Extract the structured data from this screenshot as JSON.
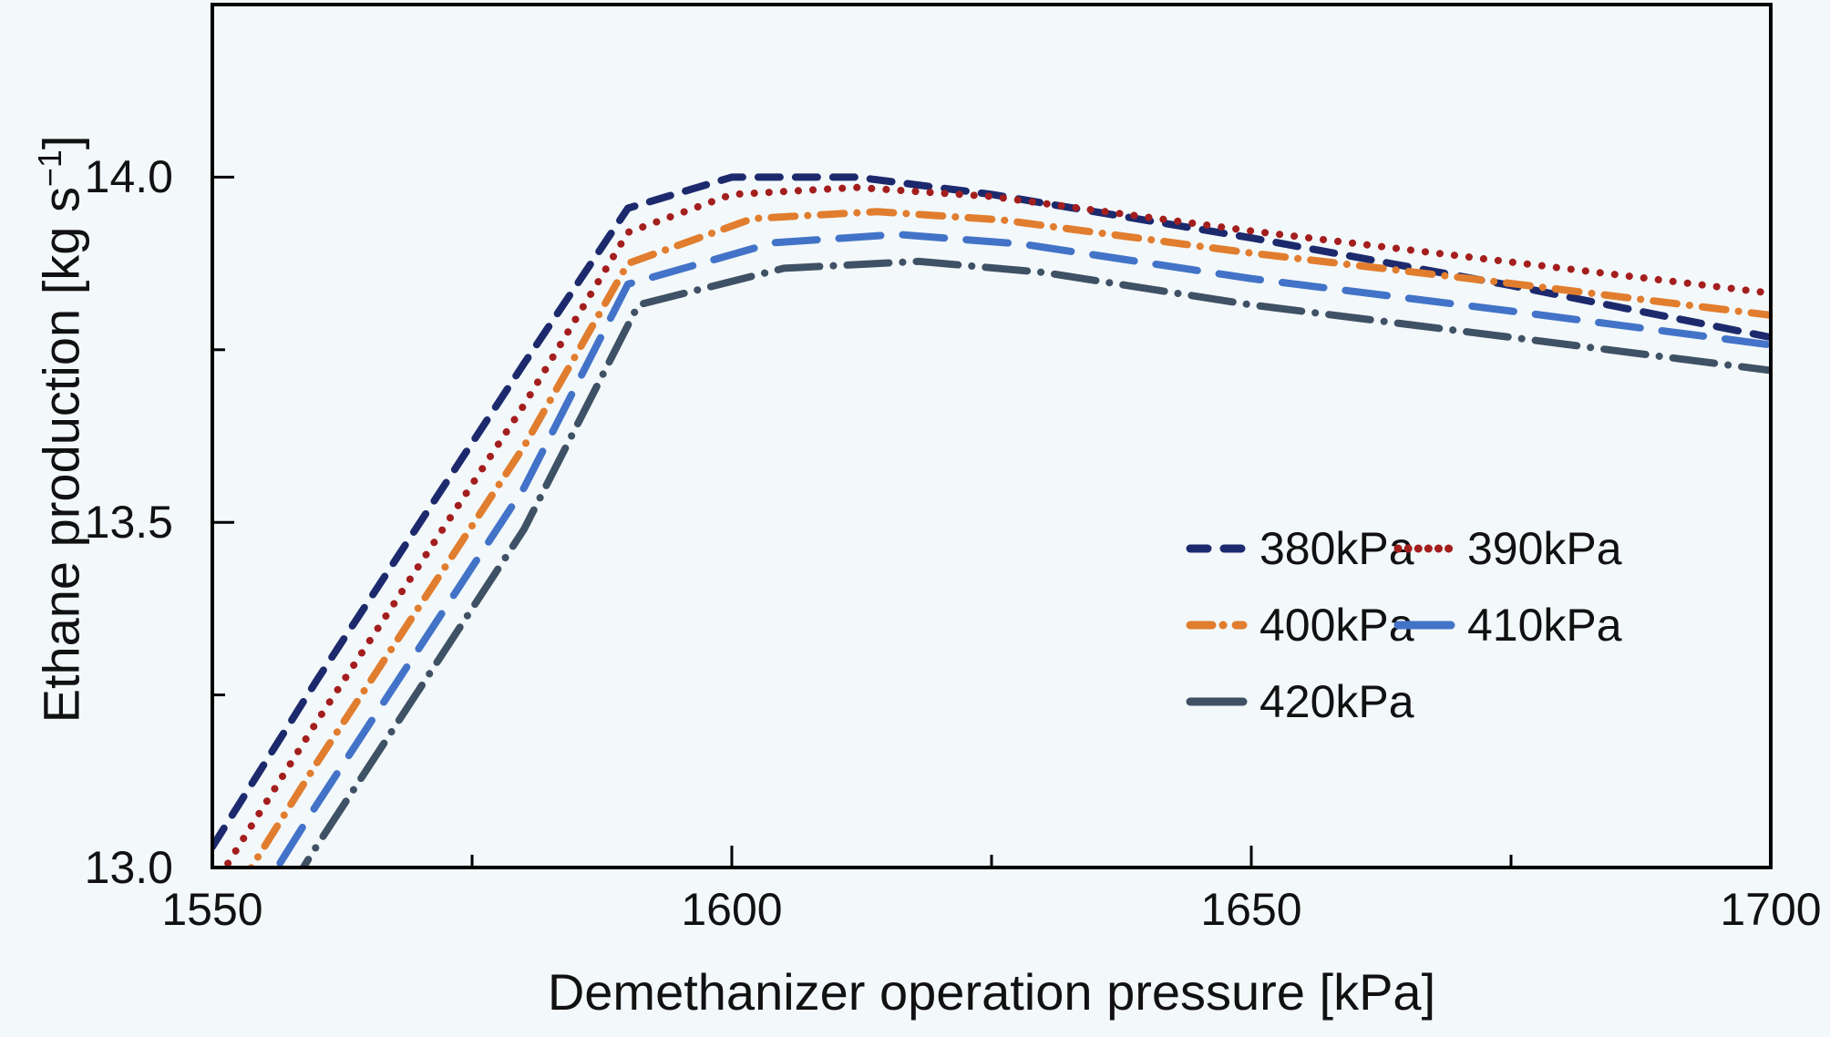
{
  "figure": {
    "background": "#f3f8fa",
    "axis_color": "#000000",
    "text_color": "#111111"
  },
  "chart_data": {
    "type": "line",
    "title": "",
    "xlabel": "Demethanizer operation pressure [kPa]",
    "ylabel": "Ethane production [kg s−1]",
    "ylabel_parts": {
      "main": "Ethane production [kg s",
      "sup": "−1",
      "end": "]"
    },
    "xlim": [
      1550,
      1700
    ],
    "ylim": [
      13.0,
      14.25
    ],
    "x_major_ticks": [
      1550,
      1600,
      1650,
      1700
    ],
    "x_minor_ticks": [
      1575,
      1625,
      1675
    ],
    "y_major_ticks": [
      13.0,
      13.5,
      14.0
    ],
    "y_minor_ticks": [
      13.25,
      13.75
    ],
    "x_tick_labels": [
      "1550",
      "1600",
      "1650",
      "1700"
    ],
    "y_tick_labels": [
      "13.0",
      "13.5",
      "14.0"
    ],
    "grid": false,
    "legend_position": "inside lower right",
    "series": [
      {
        "name": "380kPa",
        "color": "#1c2a6d",
        "style": "dashed",
        "x": [
          1550,
          1560,
          1570,
          1580,
          1590,
          1600,
          1612,
          1625,
          1650,
          1675,
          1700
        ],
        "y": [
          13.03,
          13.27,
          13.5,
          13.73,
          13.955,
          14.0,
          14.0,
          13.975,
          13.912,
          13.843,
          13.768
        ]
      },
      {
        "name": "390kPa",
        "color": "#a41e1e",
        "style": "dotted",
        "x": [
          1550,
          1560,
          1570,
          1580,
          1590,
          1600,
          1612,
          1625,
          1650,
          1675,
          1700
        ],
        "y": [
          12.97,
          13.21,
          13.44,
          13.67,
          13.92,
          13.975,
          13.985,
          13.972,
          13.922,
          13.877,
          13.832
        ]
      },
      {
        "name": "400kPa",
        "color": "#e17d2e",
        "style": "dashdot",
        "x": [
          1550,
          1560,
          1570,
          1580,
          1590,
          1602,
          1614,
          1626,
          1650,
          1675,
          1700
        ],
        "y": [
          12.91,
          13.15,
          13.38,
          13.61,
          13.875,
          13.94,
          13.95,
          13.938,
          13.89,
          13.846,
          13.8
        ]
      },
      {
        "name": "410kPa",
        "color": "#4273c8",
        "style": "longdash",
        "x": [
          1550,
          1560,
          1570,
          1580,
          1590,
          1604,
          1616,
          1628,
          1650,
          1675,
          1700
        ],
        "y": [
          12.85,
          13.09,
          13.32,
          13.55,
          13.845,
          13.905,
          13.917,
          13.903,
          13.853,
          13.806,
          13.757
        ]
      },
      {
        "name": "420kPa",
        "color": "#3f5165",
        "style": "longdashdot",
        "x": [
          1550,
          1560,
          1570,
          1580,
          1591,
          1605,
          1618,
          1630,
          1650,
          1675,
          1700
        ],
        "y": [
          12.79,
          13.03,
          13.26,
          13.49,
          13.815,
          13.868,
          13.878,
          13.862,
          13.815,
          13.768,
          13.72
        ]
      }
    ]
  }
}
